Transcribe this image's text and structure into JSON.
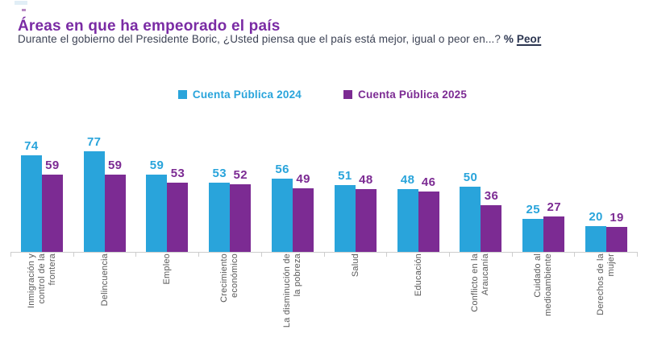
{
  "header": {
    "title": "Áreas en que ha empeorado el país",
    "subtitle": "Durante el gobierno del Presidente Boric, ¿Usted piensa que el país está mejor, igual o peor en...?",
    "subtitle_pct": "%",
    "subtitle_peor": "Peor"
  },
  "colors": {
    "title": "#7A2BA4",
    "subtitle": "#3D4355",
    "emphasis": "#2B3550",
    "series_2024_blue": "#29A4DB",
    "series_2025_purple": "#7C2B93",
    "axis_line": "#CDCDCD",
    "x_labels": "#5A5A5A"
  },
  "chart_data": {
    "type": "bar",
    "title": "Áreas en que ha empeorado el país",
    "subtitle": "Durante el gobierno del Presidente Boric, ¿Usted piensa que el país está mejor, igual o peor en...? % Peor",
    "unit": "%",
    "categories": [
      "Inmigración y control de la frontera",
      "Delincuencia",
      "Empleo",
      "Crecimiento económico",
      "La disminución de la pobreza",
      "Salud",
      "Educación",
      "Conflicto en la Araucanía",
      "Cuidado al medioambiente",
      "Derechos de la mujer"
    ],
    "categories_display": [
      "Inmigración y\ncontrol de la\nfrontera",
      "Delincuencia",
      "Empleo",
      "Crecimiento\neconómico",
      "La disminución de\nla pobreza",
      "Salud",
      "Educación",
      "Conflicto en la\nAraucanía",
      "Cuidado al\nmedioambiente",
      "Derechos de la\nmujer"
    ],
    "series": [
      {
        "name": "Cuenta Pública 2024",
        "color": "#29A4DB",
        "values": [
          74,
          77,
          59,
          53,
          56,
          51,
          48,
          50,
          25,
          20
        ]
      },
      {
        "name": "Cuenta Pública 2025",
        "color": "#7C2B93",
        "values": [
          59,
          59,
          53,
          52,
          49,
          48,
          46,
          36,
          27,
          19
        ]
      }
    ],
    "value_labels": true,
    "y_axis_visible": false,
    "grid": false,
    "legend_position": "top",
    "ylim": [
      0,
      85
    ]
  }
}
